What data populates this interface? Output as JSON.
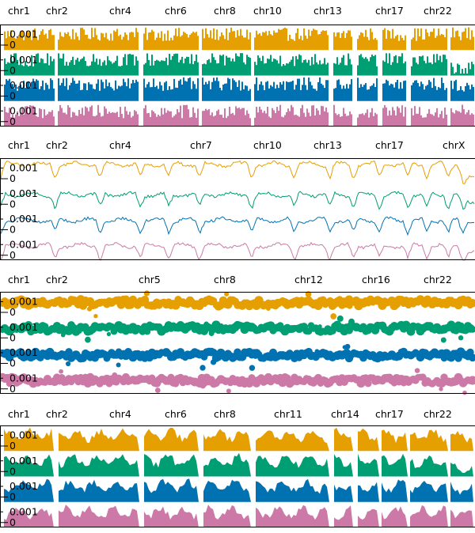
{
  "chart_data": [
    {
      "type": "bar",
      "chrom_labels": [
        "chr1",
        "chr2",
        "chr4",
        "chr6",
        "chr8",
        "chr10",
        "chr13",
        "chr17",
        "chr22"
      ],
      "y_ticks": [
        "0.001",
        "0"
      ],
      "series_colors": [
        "#E69F00",
        "#009E73",
        "#0072B2",
        "#CC79A7"
      ],
      "gap_positions": [
        0.0,
        0.115,
        0.295,
        0.42,
        0.53,
        0.695,
        0.745,
        0.8,
        0.86,
        0.945
      ],
      "series_level": [
        0.65,
        0.65,
        0.7,
        0.62
      ],
      "series_last_level": [
        0.68,
        0.3,
        0.62,
        0.66
      ]
    },
    {
      "type": "line",
      "chrom_labels": [
        "chr1",
        "chr2",
        "chr4",
        "chr7",
        "chr10",
        "chr13",
        "chr17",
        "chrX"
      ],
      "y_ticks": [
        "0.001",
        "0"
      ],
      "series_colors": [
        "#E69F00",
        "#009E73",
        "#0072B2",
        "#CC79A7"
      ],
      "dip_positions": [
        0.0,
        0.115,
        0.21,
        0.295,
        0.355,
        0.42,
        0.53,
        0.62,
        0.695,
        0.745,
        0.8,
        0.86,
        0.9,
        0.945,
        0.975
      ],
      "series_level": [
        0.8,
        0.6,
        0.6,
        0.6
      ],
      "series_last_level": [
        0.2,
        0.25,
        0.55,
        0.35
      ]
    },
    {
      "type": "scatter",
      "chrom_labels": [
        "chr1",
        "chr2",
        "chr5",
        "chr8",
        "chr12",
        "chr16",
        "chr22"
      ],
      "y_ticks": [
        "0.001",
        "0"
      ],
      "series_colors": [
        "#E69F00",
        "#009E73",
        "#0072B2",
        "#CC79A7"
      ],
      "series_level": [
        0.6,
        0.6,
        0.55,
        0.55
      ]
    },
    {
      "type": "area",
      "chrom_labels": [
        "chr1",
        "chr2",
        "chr4",
        "chr6",
        "chr8",
        "chr11",
        "chr14",
        "chr17",
        "chr22"
      ],
      "y_ticks": [
        "0.001",
        "0"
      ],
      "series_colors": [
        "#E69F00",
        "#009E73",
        "#0072B2",
        "#CC79A7"
      ],
      "gap_positions": [
        0.0,
        0.115,
        0.295,
        0.42,
        0.53,
        0.695,
        0.745,
        0.8,
        0.86,
        0.945
      ],
      "series_level": [
        0.65,
        0.65,
        0.65,
        0.62
      ],
      "series_last_level": [
        0.6,
        0.3,
        0.55,
        0.6
      ]
    }
  ]
}
